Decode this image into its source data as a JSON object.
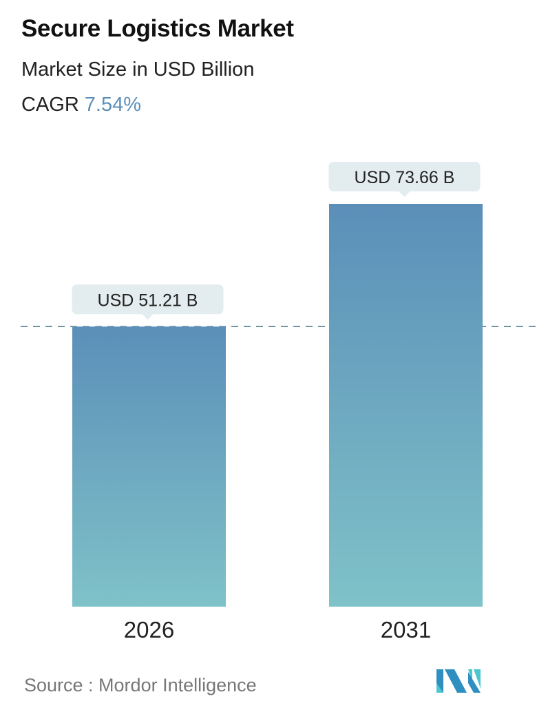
{
  "header": {
    "title": "Secure Logistics Market",
    "subtitle": "Market Size in USD Billion",
    "cagr_label": "CAGR",
    "cagr_value": "7.54%"
  },
  "chart_data": {
    "type": "bar",
    "categories": [
      "2026",
      "2031"
    ],
    "values": [
      51.21,
      73.66
    ],
    "data_labels": [
      "USD 51.21 B",
      "USD 73.66 B"
    ],
    "unit": "USD Billion",
    "reference_line": 51.21,
    "grid": false,
    "colors": {
      "bar_top": "#5b8fb9",
      "bar_bottom": "#7fc2c8",
      "label_bg": "#e3ecee",
      "reference_line": "#4f7f8f"
    }
  },
  "footer": {
    "source": "Source :  Mordor Intelligence",
    "logo": "Mordor Intelligence logo"
  }
}
